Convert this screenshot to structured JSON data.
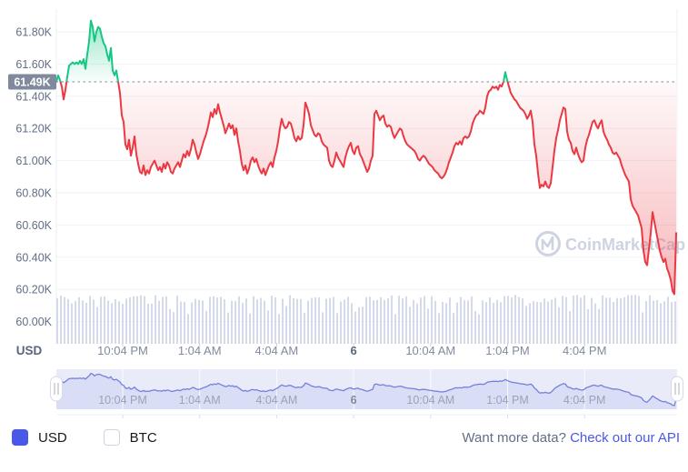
{
  "watermark": {
    "text": "CoinMarketCap"
  },
  "controls": {
    "usd": {
      "label": "USD",
      "checked": true
    },
    "btc": {
      "label": "BTC",
      "checked": false
    }
  },
  "footer": {
    "prompt": "Want more data?",
    "link": "Check out our API"
  },
  "colors": {
    "up": "#16C784",
    "down": "#EA3943",
    "grid": "#F0F2F7",
    "axis_line": "#ECEFF5",
    "y_label": "#616E85",
    "x_label": "#808A9D",
    "x_label_bold": "#58667E",
    "badge_bg": "#808A9D",
    "badge_text": "#FFFFFF",
    "dotted_line": "#979EAB",
    "volume_bar": "#CBD1E3",
    "nav_bg": "#E9EBF9",
    "nav_fill": "#D9DDF5",
    "nav_line": "#7580DC",
    "nav_grid": "#FFFFFF",
    "nav_label": "#9AA3B5",
    "nav_label_bold": "#808A9D",
    "handle_fill": "#FFFFFF",
    "handle_border": "#D5DAE4",
    "handle_grip": "#A9B0BF",
    "checkbox_on": "#4A58E8",
    "link": "#4A58E8",
    "watermark": "#C9CFDE"
  },
  "chart_data": {
    "type": "line",
    "unit": "USD",
    "baseline_label": "61.49K",
    "baseline_value_k": 61.49,
    "ylim_k": [
      60.0,
      61.9
    ],
    "grid": true,
    "y_axis": {
      "unit_label": "USD",
      "labels": [
        "61.80K",
        "61.60K",
        "61.40K",
        "61.20K",
        "61.00K",
        "60.80K",
        "60.60K",
        "60.40K",
        "60.20K",
        "60.00K"
      ],
      "values_k": [
        61.8,
        61.6,
        61.4,
        61.2,
        61.0,
        60.8,
        60.6,
        60.4,
        60.2,
        60.0
      ]
    },
    "x_axis": {
      "labels": [
        "10:04 PM",
        "1:04 AM",
        "4:04 AM",
        "6",
        "10:04 AM",
        "1:04 PM",
        "4:04 PM"
      ],
      "bold_index": 3
    },
    "navigator": {
      "labels_same_as_x_axis": true
    },
    "volume_bars": {
      "present": true,
      "count": 171
    },
    "series": [
      {
        "name": "BTC price (USD, thousands)",
        "sampling": "uniform over visible window, left to right",
        "values_k": [
          61.49,
          61.53,
          61.5,
          61.46,
          61.38,
          61.44,
          61.52,
          61.59,
          61.6,
          61.61,
          61.6,
          61.61,
          61.6,
          61.62,
          61.6,
          61.63,
          61.57,
          61.66,
          61.74,
          61.87,
          61.83,
          61.74,
          61.8,
          61.83,
          61.82,
          61.77,
          61.73,
          61.71,
          61.66,
          61.62,
          61.7,
          61.56,
          61.53,
          61.56,
          61.49,
          61.42,
          61.28,
          61.24,
          61.1,
          61.07,
          61.13,
          61.03,
          61.08,
          61.15,
          61.04,
          60.98,
          60.93,
          60.92,
          60.97,
          60.91,
          60.94,
          60.92,
          60.96,
          60.98,
          61.0,
          60.97,
          60.94,
          60.96,
          60.93,
          60.98,
          60.95,
          60.99,
          60.97,
          60.93,
          60.92,
          60.95,
          60.97,
          60.99,
          60.96,
          61.0,
          61.04,
          61.02,
          61.06,
          61.03,
          61.07,
          61.13,
          61.1,
          61.05,
          61.01,
          61.04,
          61.08,
          61.12,
          61.15,
          61.19,
          61.24,
          61.3,
          61.27,
          61.32,
          61.29,
          61.35,
          61.3,
          61.26,
          61.22,
          61.17,
          61.2,
          61.23,
          61.2,
          61.22,
          61.16,
          61.2,
          61.12,
          61.06,
          60.98,
          60.94,
          60.97,
          60.92,
          60.95,
          61.0,
          61.02,
          60.99,
          61.01,
          60.97,
          60.94,
          60.92,
          60.95,
          60.91,
          60.94,
          60.97,
          60.99,
          60.96,
          61.02,
          61.06,
          61.12,
          61.2,
          61.26,
          61.22,
          61.2,
          61.21,
          61.24,
          61.23,
          61.19,
          61.14,
          61.12,
          61.15,
          61.13,
          61.14,
          61.22,
          61.36,
          61.33,
          61.29,
          61.22,
          61.19,
          61.16,
          61.15,
          61.17,
          61.16,
          61.12,
          61.1,
          61.09,
          61.08,
          61.0,
          60.97,
          60.96,
          61.0,
          61.05,
          61.02,
          61.0,
          60.98,
          60.96,
          61.02,
          61.06,
          61.09,
          61.11,
          61.06,
          61.04,
          61.08,
          61.09,
          61.04,
          61.02,
          60.99,
          60.96,
          60.93,
          60.95,
          61.0,
          61.03,
          61.29,
          61.31,
          61.28,
          61.25,
          61.27,
          61.28,
          61.23,
          61.21,
          61.22,
          61.21,
          61.17,
          61.14,
          61.16,
          61.18,
          61.2,
          61.19,
          61.15,
          61.12,
          61.1,
          61.09,
          61.08,
          61.07,
          61.06,
          61.04,
          61.01,
          61.0,
          61.02,
          61.03,
          61.02,
          61.0,
          60.98,
          60.97,
          60.96,
          60.94,
          60.93,
          60.92,
          60.9,
          60.89,
          60.9,
          60.92,
          60.95,
          60.99,
          61.02,
          61.05,
          61.09,
          61.11,
          61.1,
          61.12,
          61.1,
          61.14,
          61.15,
          61.14,
          61.15,
          61.18,
          61.23,
          61.26,
          61.28,
          61.29,
          61.31,
          61.3,
          61.29,
          61.33,
          61.4,
          61.43,
          61.44,
          61.46,
          61.45,
          61.46,
          61.44,
          61.47,
          61.46,
          61.49,
          61.55,
          61.5,
          61.46,
          61.42,
          61.4,
          61.38,
          61.37,
          61.35,
          61.33,
          61.32,
          61.31,
          61.29,
          61.26,
          61.28,
          61.31,
          61.24,
          61.1,
          61.03,
          60.92,
          60.83,
          60.85,
          60.84,
          60.87,
          60.84,
          60.83,
          60.86,
          60.96,
          61.06,
          61.14,
          61.19,
          61.25,
          61.29,
          61.33,
          61.32,
          61.18,
          61.13,
          61.11,
          61.06,
          61.04,
          61.08,
          61.04,
          61.01,
          60.99,
          61.0,
          61.08,
          61.13,
          61.16,
          61.2,
          61.24,
          61.25,
          61.22,
          61.2,
          61.23,
          61.25,
          61.18,
          61.15,
          61.13,
          61.1,
          61.08,
          61.05,
          61.04,
          61.05,
          61.03,
          61.01,
          60.97,
          60.94,
          60.91,
          60.89,
          60.87,
          60.76,
          60.72,
          60.7,
          60.68,
          60.66,
          60.62,
          60.58,
          60.44,
          60.37,
          60.35,
          60.45,
          60.55,
          60.68,
          60.62,
          60.56,
          60.5,
          60.44,
          60.4,
          60.37,
          60.39,
          60.33,
          60.3,
          60.26,
          60.19,
          60.17,
          60.55
        ]
      }
    ]
  }
}
